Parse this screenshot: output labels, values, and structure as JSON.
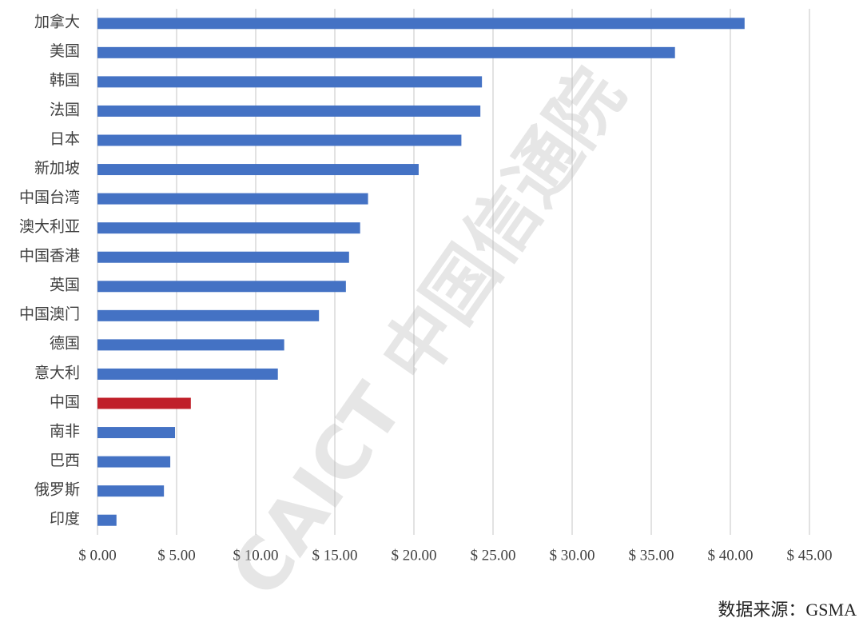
{
  "chart_data": {
    "type": "hbar",
    "categories": [
      "加拿大",
      "美国",
      "韩国",
      "法国",
      "日本",
      "新加坡",
      "中国台湾",
      "澳大利亚",
      "中国香港",
      "英国",
      "中国澳门",
      "德国",
      "意大利",
      "中国",
      "南非",
      "巴西",
      "俄罗斯",
      "印度"
    ],
    "values": [
      40.9,
      36.5,
      24.3,
      24.2,
      23.0,
      20.3,
      17.1,
      16.6,
      15.9,
      15.7,
      14.0,
      11.8,
      11.4,
      5.9,
      4.9,
      4.6,
      4.2,
      1.2
    ],
    "colors": [
      "#4472c4",
      "#4472c4",
      "#4472c4",
      "#4472c4",
      "#4472c4",
      "#4472c4",
      "#4472c4",
      "#4472c4",
      "#4472c4",
      "#4472c4",
      "#4472c4",
      "#4472c4",
      "#4472c4",
      "#c0202a",
      "#4472c4",
      "#4472c4",
      "#4472c4",
      "#4472c4"
    ],
    "xlim": [
      0,
      45
    ],
    "xticks": [
      {
        "value": 0,
        "label": "$ 0.00"
      },
      {
        "value": 5,
        "label": "$ 5.00"
      },
      {
        "value": 10,
        "label": "$ 10.00"
      },
      {
        "value": 15,
        "label": "$ 15.00"
      },
      {
        "value": 20,
        "label": "$ 20.00"
      },
      {
        "value": 25,
        "label": "$ 25.00"
      },
      {
        "value": 30,
        "label": "$ 30.00"
      },
      {
        "value": 35,
        "label": "$ 35.00"
      },
      {
        "value": 40,
        "label": "$ 40.00"
      },
      {
        "value": 45,
        "label": "$ 45.00"
      }
    ],
    "grid": true,
    "source": "数据来源：GSMA",
    "watermark": "CAICT 中国信通院"
  }
}
